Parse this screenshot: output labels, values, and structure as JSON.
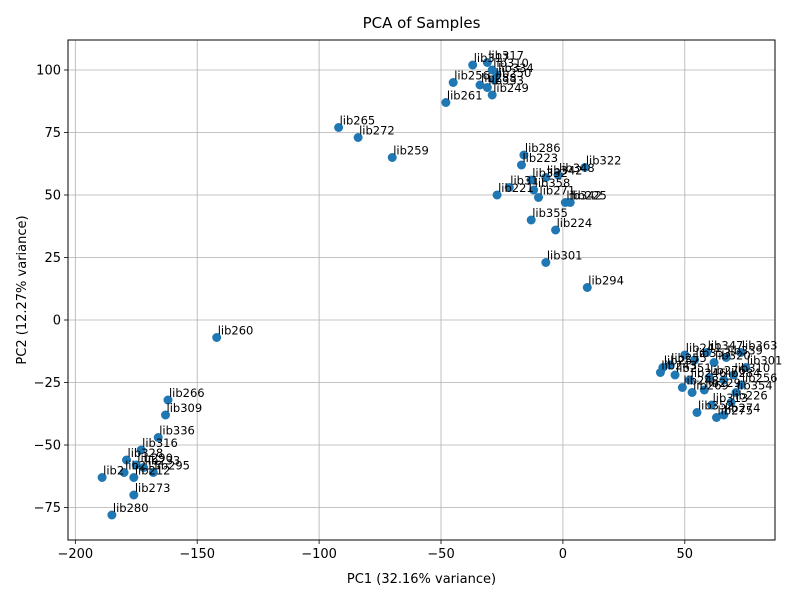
{
  "chart_data": {
    "type": "scatter",
    "title": "PCA of Samples",
    "xlabel": "PC1 (32.16% variance)",
    "ylabel": "PC2 (12.27% variance)",
    "xlim": [
      -203,
      87
    ],
    "ylim": [
      -88,
      112
    ],
    "xticks": [
      -200,
      -150,
      -100,
      -50,
      0,
      50
    ],
    "yticks": [
      -75,
      -50,
      -25,
      0,
      25,
      50,
      75,
      100
    ],
    "grid": true,
    "point_color": "#1f77b4",
    "points": [
      {
        "label": "lib317",
        "x": -37,
        "y": 102
      },
      {
        "label": "lib317",
        "x": -31,
        "y": 103
      },
      {
        "label": "lib310",
        "x": -29,
        "y": 100
      },
      {
        "label": "lib334",
        "x": -27,
        "y": 98
      },
      {
        "label": "lib250",
        "x": -28,
        "y": 96
      },
      {
        "label": "lib256",
        "x": -45,
        "y": 95
      },
      {
        "label": "lib288",
        "x": -34,
        "y": 94
      },
      {
        "label": "lib333",
        "x": -31,
        "y": 93
      },
      {
        "label": "lib249",
        "x": -29,
        "y": 90
      },
      {
        "label": "lib261",
        "x": -48,
        "y": 87
      },
      {
        "label": "lib265",
        "x": -92,
        "y": 77
      },
      {
        "label": "lib272",
        "x": -84,
        "y": 73
      },
      {
        "label": "lib259",
        "x": -70,
        "y": 65
      },
      {
        "label": "lib286",
        "x": -16,
        "y": 66
      },
      {
        "label": "lib223",
        "x": -17,
        "y": 62
      },
      {
        "label": "lib322",
        "x": 9,
        "y": 61
      },
      {
        "label": "lib348",
        "x": -2,
        "y": 58
      },
      {
        "label": "lib342",
        "x": -7,
        "y": 57
      },
      {
        "label": "lib332",
        "x": -13,
        "y": 56
      },
      {
        "label": "lib31",
        "x": -22,
        "y": 53
      },
      {
        "label": "lib358",
        "x": -12,
        "y": 52
      },
      {
        "label": "lib221",
        "x": -27,
        "y": 50
      },
      {
        "label": "lib271",
        "x": -10,
        "y": 49
      },
      {
        "label": "lib342",
        "x": 1,
        "y": 47
      },
      {
        "label": "lib225",
        "x": 3,
        "y": 47
      },
      {
        "label": "lib355",
        "x": -13,
        "y": 40
      },
      {
        "label": "lib224",
        "x": -3,
        "y": 36
      },
      {
        "label": "lib301",
        "x": -7,
        "y": 23
      },
      {
        "label": "lib294",
        "x": 10,
        "y": 13
      },
      {
        "label": "lib260",
        "x": -142,
        "y": -7
      },
      {
        "label": "lib266",
        "x": -162,
        "y": -32
      },
      {
        "label": "lib309",
        "x": -163,
        "y": -38
      },
      {
        "label": "lib336",
        "x": -166,
        "y": -47
      },
      {
        "label": "lib316",
        "x": -173,
        "y": -52
      },
      {
        "label": "lib328",
        "x": -179,
        "y": -56
      },
      {
        "label": "lib290",
        "x": -175,
        "y": -58
      },
      {
        "label": "lib233",
        "x": -172,
        "y": -59
      },
      {
        "label": "lib295",
        "x": -168,
        "y": -61
      },
      {
        "label": "lib215",
        "x": -180,
        "y": -61
      },
      {
        "label": "lib212",
        "x": -176,
        "y": -63
      },
      {
        "label": "lib2",
        "x": -189,
        "y": -63
      },
      {
        "label": "lib273",
        "x": -176,
        "y": -70
      },
      {
        "label": "lib280",
        "x": -185,
        "y": -78
      },
      {
        "label": "lib363",
        "x": 73,
        "y": -13
      },
      {
        "label": "lib347",
        "x": 59,
        "y": -13
      },
      {
        "label": "lib241",
        "x": 50,
        "y": -14
      },
      {
        "label": "lib339",
        "x": 67,
        "y": -15
      },
      {
        "label": "lib353",
        "x": 54,
        "y": -16
      },
      {
        "label": "lib320",
        "x": 62,
        "y": -17
      },
      {
        "label": "lib255",
        "x": 44,
        "y": -18
      },
      {
        "label": "lib257",
        "x": 41,
        "y": -19
      },
      {
        "label": "lib301b",
        "x": 75,
        "y": -19
      },
      {
        "label": "lib243",
        "x": 40,
        "y": -21
      },
      {
        "label": "lib251",
        "x": 46,
        "y": -22
      },
      {
        "label": "lib310b",
        "x": 70,
        "y": -22
      },
      {
        "label": "lib276",
        "x": 60,
        "y": -23
      },
      {
        "label": "lib246",
        "x": 52,
        "y": -24
      },
      {
        "label": "lib284",
        "x": 66,
        "y": -24
      },
      {
        "label": "lib256b",
        "x": 73,
        "y": -26
      },
      {
        "label": "lib248",
        "x": 49,
        "y": -27
      },
      {
        "label": "lib229",
        "x": 58,
        "y": -28
      },
      {
        "label": "lib354",
        "x": 71,
        "y": -29
      },
      {
        "label": "lib269",
        "x": 53,
        "y": -29
      },
      {
        "label": "lib226",
        "x": 69,
        "y": -33
      },
      {
        "label": "lib313",
        "x": 61,
        "y": -34
      },
      {
        "label": "lib352",
        "x": 55,
        "y": -37
      },
      {
        "label": "lib274",
        "x": 66,
        "y": -38
      },
      {
        "label": "lib275",
        "x": 63,
        "y": -39
      }
    ]
  }
}
